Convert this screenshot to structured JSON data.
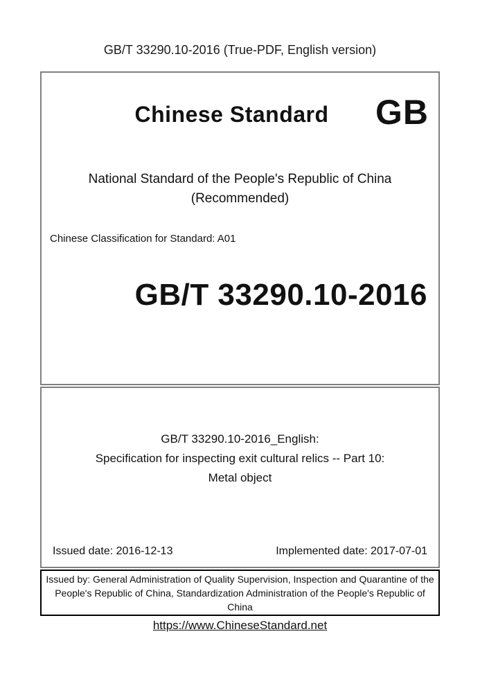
{
  "header": {
    "text": "GB/T 33290.10-2016 (True-PDF, English version)"
  },
  "cover": {
    "brand": "Chinese Standard",
    "logo": "GB",
    "national_line1": "National Standard of the People's Republic of China",
    "national_line2": "(Recommended)",
    "classification": "Chinese Classification for Standard: A01",
    "standard_number": "GB/T 33290.10-2016"
  },
  "title_block": {
    "line1": "GB/T 33290.10-2016_English:",
    "line2": "Specification for inspecting exit cultural relics -- Part 10:",
    "line3": "Metal object",
    "issued_date": "Issued date: 2016-12-13",
    "implemented_date": "Implemented date: 2017-07-01"
  },
  "issuer": {
    "text": "Issued by: General Administration of Quality Supervision, Inspection and Quarantine of the People's Republic of China, Standardization Administration of the People's Republic of China"
  },
  "footer": {
    "link_text": "https://www.ChineseStandard.net"
  },
  "colors": {
    "border_gray": "#808080",
    "border_black": "#000000",
    "text": "#111111"
  }
}
